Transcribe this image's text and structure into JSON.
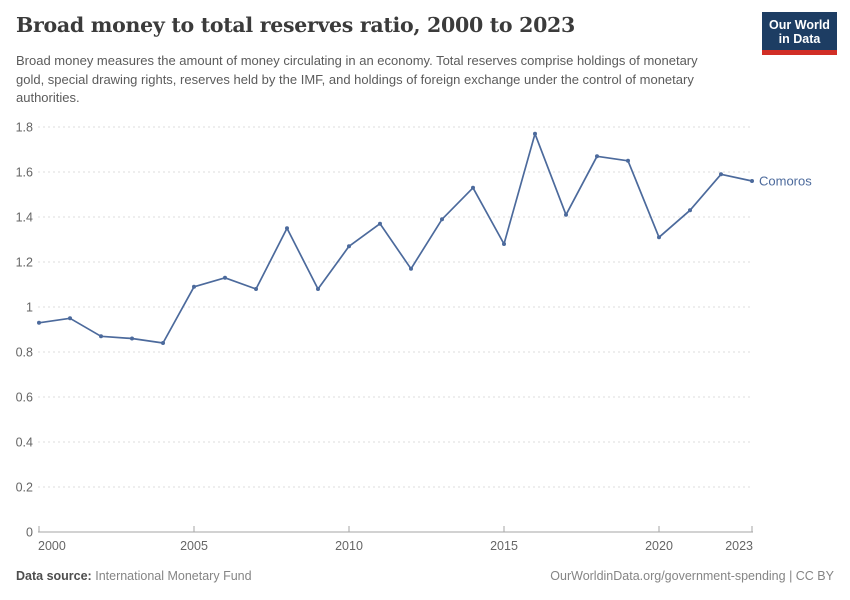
{
  "header": {
    "title": "Broad money to total reserves ratio, 2000 to 2023",
    "subtitle": "Broad money measures the amount of money circulating in an economy. Total reserves comprise holdings of monetary gold, special drawing rights, reserves held by the IMF, and holdings of foreign exchange under the control of monetary authorities.",
    "logo": {
      "line1": "Our World",
      "line2": "in Data",
      "bg_color": "#1d3d63",
      "accent_color": "#d12e26"
    }
  },
  "chart_data": {
    "type": "line",
    "title": "Broad money to total reserves ratio, 2000 to 2023",
    "x": [
      2000,
      2001,
      2002,
      2003,
      2004,
      2005,
      2006,
      2007,
      2008,
      2009,
      2010,
      2011,
      2012,
      2013,
      2014,
      2015,
      2016,
      2017,
      2018,
      2019,
      2020,
      2021,
      2022,
      2023
    ],
    "series": [
      {
        "name": "Comoros",
        "color": "#4C6A9C",
        "values": [
          0.93,
          0.95,
          0.87,
          0.86,
          0.84,
          1.09,
          1.13,
          1.08,
          1.35,
          1.08,
          1.27,
          1.37,
          1.17,
          1.39,
          1.53,
          1.28,
          1.77,
          1.41,
          1.67,
          1.65,
          1.31,
          1.43,
          1.59,
          1.56
        ]
      }
    ],
    "x_ticks": [
      2000,
      2005,
      2010,
      2015,
      2020,
      2023
    ],
    "y_ticks": [
      0,
      0.2,
      0.4,
      0.6,
      0.8,
      1,
      1.2,
      1.4,
      1.6,
      1.8
    ],
    "ylim": [
      0,
      1.8
    ],
    "xlabel": "",
    "ylabel": "",
    "grid": "horizontal-dashed",
    "legend": "inline-end-label",
    "colors": {
      "gridline": "#dddddd",
      "axis": "#a6a6a6",
      "tick_label": "#666666"
    }
  },
  "footer": {
    "source_label": "Data source:",
    "source_value": "International Monetary Fund",
    "attribution": "OurWorldinData.org/government-spending | CC BY"
  }
}
